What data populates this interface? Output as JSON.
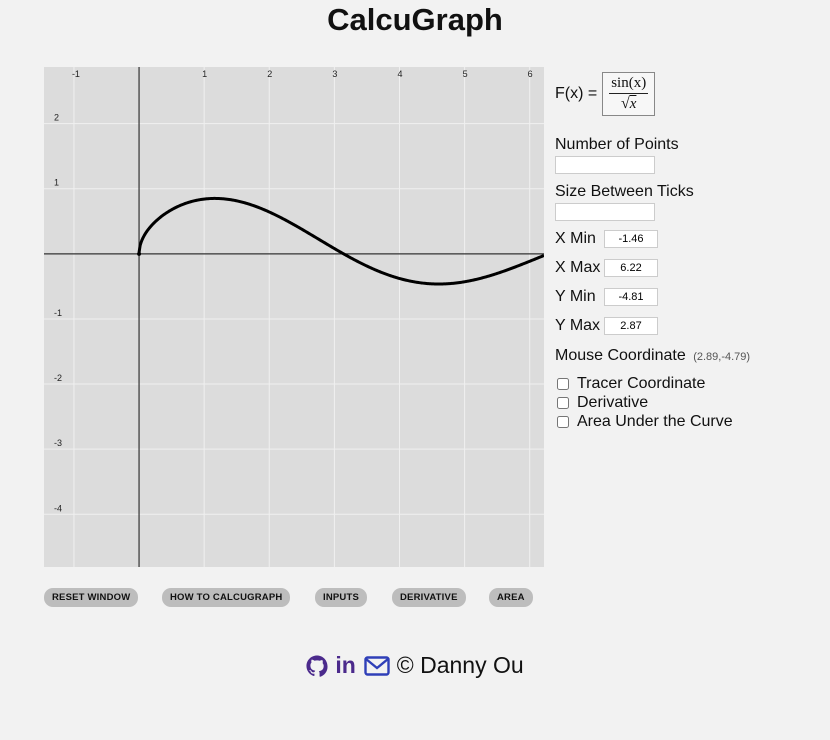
{
  "app": {
    "title": "CalcuGraph"
  },
  "function": {
    "label": "F(x) =",
    "numerator": "sin(x)",
    "denominator_var": "x"
  },
  "inputs": {
    "num_points": {
      "label": "Number of Points",
      "value": ""
    },
    "tick_size": {
      "label": "Size Between Ticks",
      "value": ""
    },
    "x_min": {
      "label": "X Min",
      "value": "-1.46"
    },
    "x_max": {
      "label": "X Max",
      "value": "6.22"
    },
    "y_min": {
      "label": "Y Min",
      "value": "-4.81"
    },
    "y_max": {
      "label": "Y Max",
      "value": "2.87"
    }
  },
  "mouse": {
    "label": "Mouse Coordinate",
    "value": "(2.89,-4.79)"
  },
  "options": [
    {
      "label": "Tracer Coordinate",
      "checked": false
    },
    {
      "label": "Derivative",
      "checked": false
    },
    {
      "label": "Area Under the Curve",
      "checked": false
    }
  ],
  "buttons": {
    "reset": "RESET WINDOW",
    "howto": "HOW TO CALCUGRAPH",
    "inputs": "INPUTS",
    "derivative": "DERIVATIVE",
    "area": "AREA"
  },
  "graph": {
    "xmin": -1.46,
    "xmax": 6.22,
    "ymin": -4.81,
    "ymax": 2.87,
    "x_tick_labels": [
      "-1",
      "1",
      "2",
      "3",
      "4",
      "5",
      "6"
    ],
    "y_tick_labels": [
      "2",
      "1",
      "-1",
      "-2",
      "-3",
      "-4"
    ],
    "grid": true
  },
  "footer": {
    "copyright": "© Danny Ou",
    "icons": [
      "github-icon",
      "linkedin-icon",
      "mail-icon"
    ],
    "github_color": "#4b2a8c",
    "linkedin_text": "in",
    "mail_color": "#2f3fb8"
  }
}
